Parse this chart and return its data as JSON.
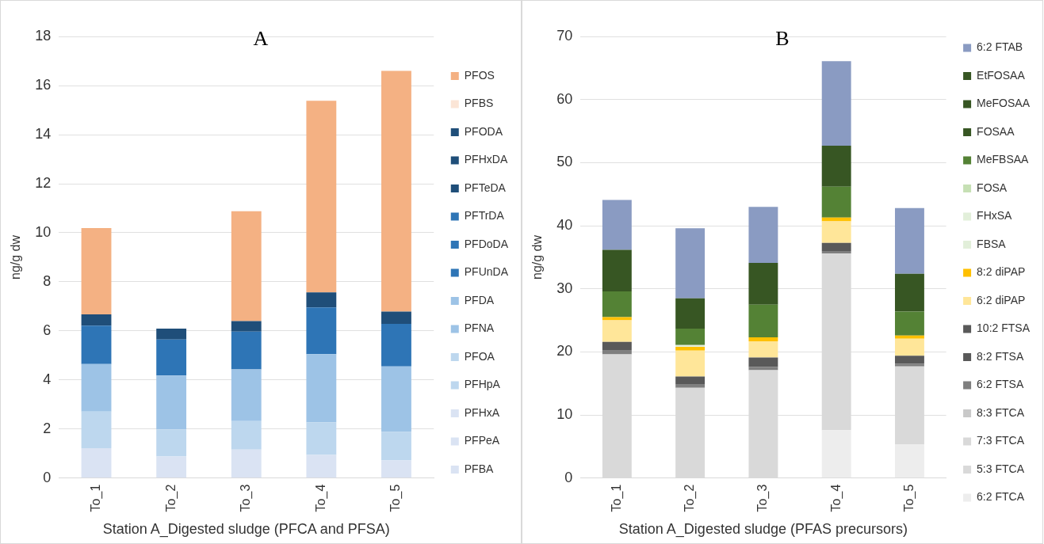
{
  "chart_data": [
    {
      "type": "bar",
      "title": "A",
      "xlabel": "Station A_Digested sludge (PFCA and PFSA)",
      "ylabel": "ng/g dw",
      "categories": [
        "To_1",
        "To_2",
        "To_3",
        "To_4",
        "To_5"
      ],
      "stacked": true,
      "ylim": [
        0,
        18
      ],
      "yticks": [
        0,
        2,
        4,
        6,
        8,
        10,
        12,
        14,
        16,
        18
      ],
      "grid": "y",
      "legend": "right",
      "series": [
        {
          "name": "PFBA",
          "color": "#dae3f3",
          "values": [
            1.22,
            0.88,
            1.16,
            0.94,
            0.72
          ]
        },
        {
          "name": "PFPeA",
          "color": "#dae3f3",
          "values": [
            0,
            0,
            0,
            0,
            0
          ]
        },
        {
          "name": "PFHxA",
          "color": "#dae3f3",
          "values": [
            0,
            0,
            0,
            0,
            0
          ]
        },
        {
          "name": "PFHpA",
          "color": "#bdd7ee",
          "values": [
            1.49,
            1.1,
            1.16,
            1.33,
            1.16
          ]
        },
        {
          "name": "PFOA",
          "color": "#bdd7ee",
          "values": [
            0,
            0,
            0,
            0,
            0
          ]
        },
        {
          "name": "PFNA",
          "color": "#9dc3e6",
          "values": [
            1.94,
            2.2,
            2.11,
            2.78,
            2.67
          ]
        },
        {
          "name": "PFDA",
          "color": "#9dc3e6",
          "values": [
            0,
            0,
            0,
            0,
            0
          ]
        },
        {
          "name": "PFUnDA",
          "color": "#2e75b6",
          "values": [
            1.56,
            1.47,
            1.54,
            1.91,
            1.74
          ]
        },
        {
          "name": "PFDoDA",
          "color": "#2e75b6",
          "values": [
            0,
            0,
            0,
            0,
            0
          ]
        },
        {
          "name": "PFTrDA",
          "color": "#2e75b6",
          "values": [
            0,
            0,
            0,
            0,
            0
          ]
        },
        {
          "name": "PFTeDA",
          "color": "#1f4e79",
          "values": [
            0.46,
            0.44,
            0.43,
            0.61,
            0.5
          ]
        },
        {
          "name": "PFHxDA",
          "color": "#1f4e79",
          "values": [
            0,
            0,
            0,
            0,
            0
          ]
        },
        {
          "name": "PFODA",
          "color": "#1f4e79",
          "values": [
            0,
            0,
            0,
            0,
            0
          ]
        },
        {
          "name": "PFBS",
          "color": "#fbe5d6",
          "values": [
            0,
            0,
            0,
            0,
            0
          ]
        },
        {
          "name": "PFOS",
          "color": "#f4b183",
          "values": [
            3.52,
            0,
            4.48,
            7.81,
            9.81
          ]
        }
      ]
    },
    {
      "type": "bar",
      "title": "B",
      "xlabel": "Station A_Digested sludge (PFAS precursors)",
      "ylabel": "ng/g dw",
      "categories": [
        "To_1",
        "To_2",
        "To_3",
        "To_4",
        "To_5"
      ],
      "stacked": true,
      "ylim": [
        0,
        70
      ],
      "yticks": [
        0,
        10,
        20,
        30,
        40,
        50,
        60,
        70
      ],
      "grid": "y",
      "legend": "right",
      "series": [
        {
          "name": "6:2 FTCA",
          "color": "#ededed",
          "values": [
            0,
            0,
            0,
            7.6,
            5.3
          ]
        },
        {
          "name": "5:3 FTCA",
          "color": "#d9d9d9",
          "values": [
            19.6,
            14.3,
            17.1,
            28.0,
            12.4
          ]
        },
        {
          "name": "7:3 FTCA",
          "color": "#d9d9d9",
          "values": [
            0,
            0,
            0,
            0,
            0
          ]
        },
        {
          "name": "8:3 FTCA",
          "color": "#c9c9c9",
          "values": [
            0,
            0,
            0,
            0,
            0
          ]
        },
        {
          "name": "6:2 FTSA",
          "color": "#7f7f7f",
          "values": [
            0.6,
            0.5,
            0.5,
            0.4,
            0.4
          ]
        },
        {
          "name": "8:2 FTSA",
          "color": "#595959",
          "values": [
            1.4,
            1.3,
            1.5,
            1.3,
            1.3
          ]
        },
        {
          "name": "10:2 FTSA",
          "color": "#595959",
          "values": [
            0,
            0,
            0,
            0,
            0
          ]
        },
        {
          "name": "6:2 diPAP",
          "color": "#ffe699",
          "values": [
            3.4,
            4.1,
            2.6,
            3.4,
            2.7
          ]
        },
        {
          "name": "8:2 diPAP",
          "color": "#ffc000",
          "values": [
            0.5,
            0.6,
            0.6,
            0.6,
            0.5
          ]
        },
        {
          "name": "FBSA",
          "color": "#e2efda",
          "values": [
            null,
            0.3,
            null,
            null,
            null
          ]
        },
        {
          "name": "FHxSA",
          "color": "#e2efda",
          "values": [
            0,
            0,
            0,
            0,
            0
          ]
        },
        {
          "name": "FOSA",
          "color": "#c6e0b4",
          "values": [
            0,
            0,
            0,
            0,
            0
          ]
        },
        {
          "name": "MeFBSAA",
          "color": "#548235",
          "values": [
            4.1,
            2.6,
            5.2,
            4.9,
            3.8
          ]
        },
        {
          "name": "FOSAA",
          "color": "#375623",
          "values": [
            6.6,
            4.8,
            6.6,
            6.5,
            6.0
          ]
        },
        {
          "name": "MeFOSAA",
          "color": "#375623",
          "values": [
            0,
            0,
            0,
            0,
            0
          ]
        },
        {
          "name": "EtFOSAA",
          "color": "#375623",
          "values": [
            0,
            0,
            0,
            0,
            0
          ]
        },
        {
          "name": "6:2 FTAB",
          "color": "#8a9bc2",
          "values": [
            7.9,
            11.1,
            8.9,
            13.4,
            10.4
          ]
        }
      ]
    }
  ]
}
